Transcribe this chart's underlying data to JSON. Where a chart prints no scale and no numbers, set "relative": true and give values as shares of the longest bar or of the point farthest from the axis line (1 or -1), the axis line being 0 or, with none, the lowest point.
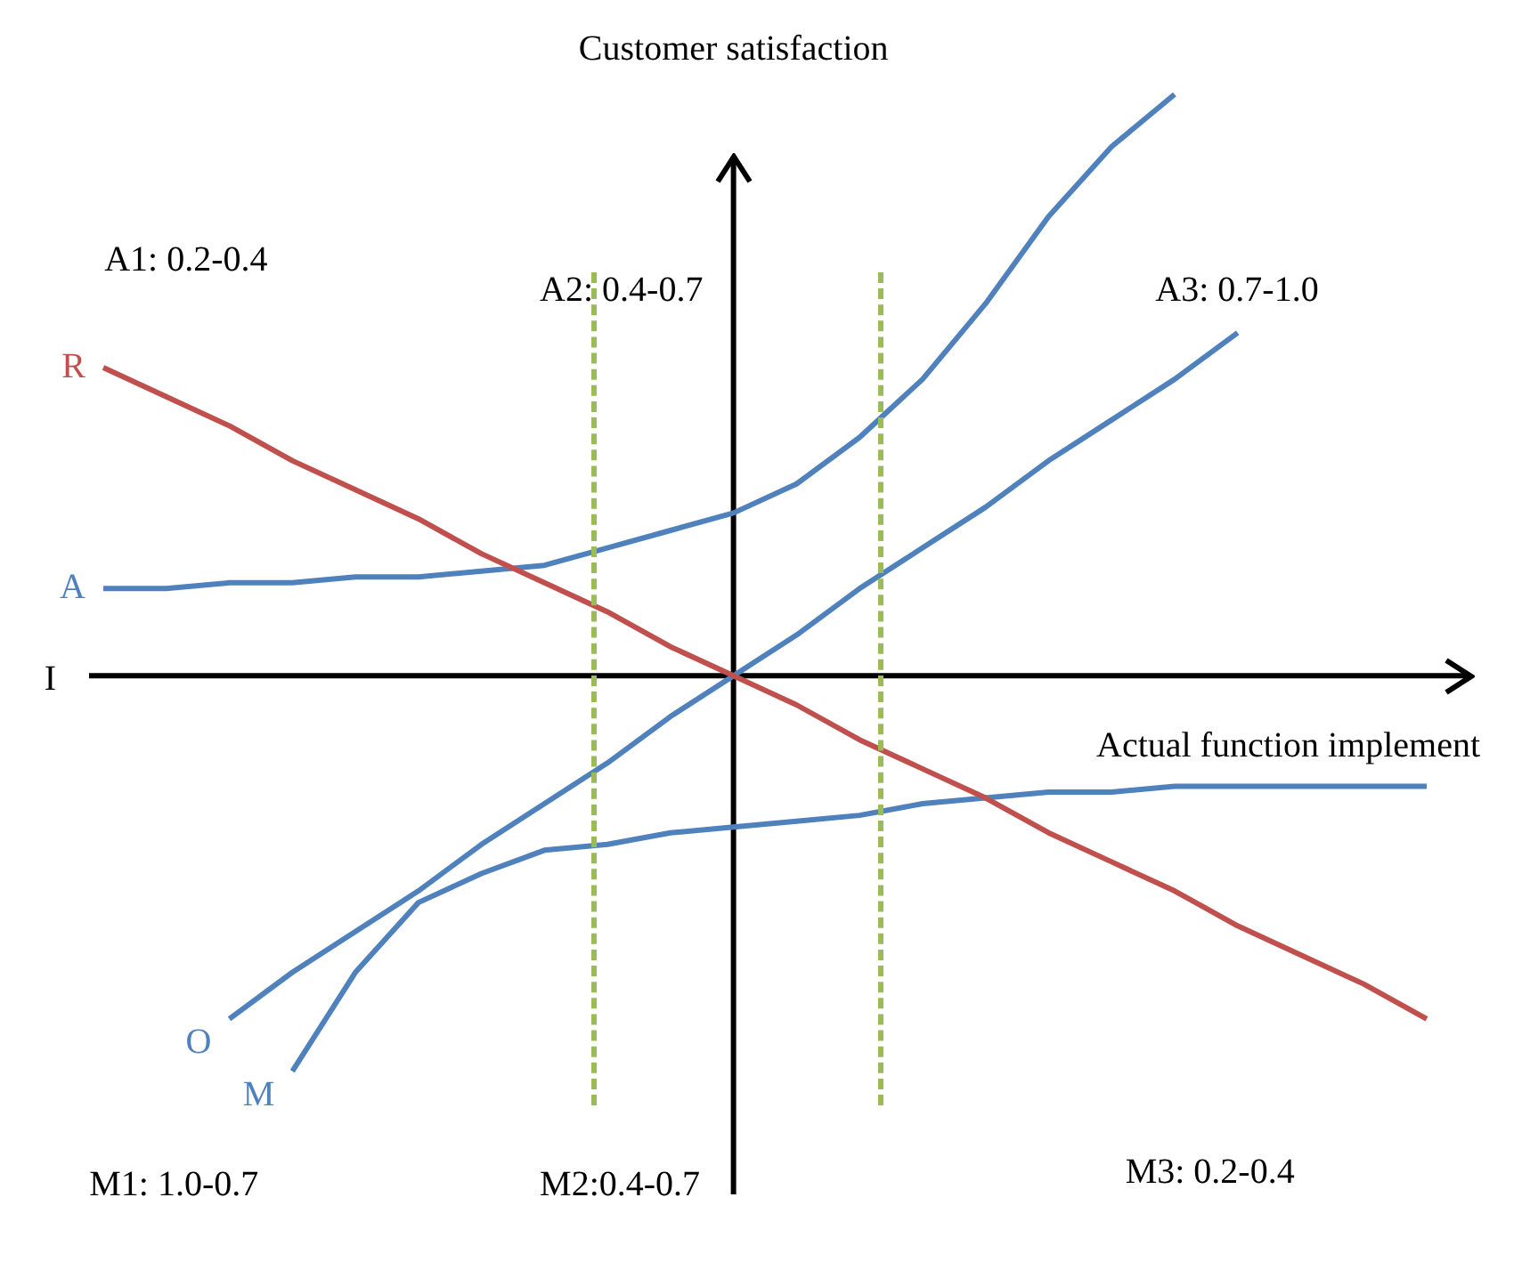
{
  "chart_data": {
    "type": "line",
    "relative": true,
    "xlabel": "Actual function implement",
    "ylabel": "Customer satisfaction",
    "tick_labels": false,
    "categories": [
      null,
      null,
      null,
      null,
      null,
      null,
      null,
      null,
      null,
      null,
      null,
      null,
      null,
      null,
      null,
      null,
      null,
      null,
      null,
      null,
      null,
      null
    ],
    "series": [
      {
        "name": "R",
        "color": "#c0504d",
        "values": [
          0.53,
          0.48,
          0.43,
          0.37,
          0.32,
          0.27,
          0.21,
          0.16,
          0.11,
          0.05,
          0,
          -0.05,
          -0.11,
          -0.16,
          -0.21,
          -0.27,
          -0.32,
          -0.37,
          -0.43,
          -0.48,
          -0.53,
          -0.59
        ]
      },
      {
        "name": "A",
        "color": "#4f81bd",
        "values": [
          0.15,
          0.15,
          0.16,
          0.16,
          0.17,
          0.17,
          0.18,
          0.19,
          0.22,
          0.25,
          0.28,
          0.33,
          0.41,
          0.51,
          0.64,
          0.79,
          0.91,
          1.0,
          null,
          null,
          null,
          null
        ]
      },
      {
        "name": "O",
        "color": "#4f81bd",
        "values": [
          null,
          null,
          -0.59,
          -0.51,
          -0.44,
          -0.37,
          -0.29,
          -0.22,
          -0.15,
          -0.07,
          0,
          0.07,
          0.15,
          0.22,
          0.29,
          0.37,
          0.44,
          0.51,
          0.59,
          null,
          null,
          null
        ]
      },
      {
        "name": "M",
        "color": "#4f81bd",
        "values": [
          null,
          null,
          null,
          -0.68,
          -0.51,
          -0.39,
          -0.34,
          -0.3,
          -0.29,
          -0.27,
          -0.26,
          -0.25,
          -0.24,
          -0.22,
          -0.21,
          -0.2,
          -0.2,
          -0.19,
          -0.19,
          -0.19,
          -0.19,
          -0.19
        ]
      }
    ],
    "annotations": [
      "A1: 0.2-0.4",
      "A2: 0.4-0.7",
      "A3: 0.7-1.0",
      "M1: 1.0-0.7",
      "M2:0.4-0.7",
      "M3: 0.2-0.4",
      "I"
    ]
  }
}
